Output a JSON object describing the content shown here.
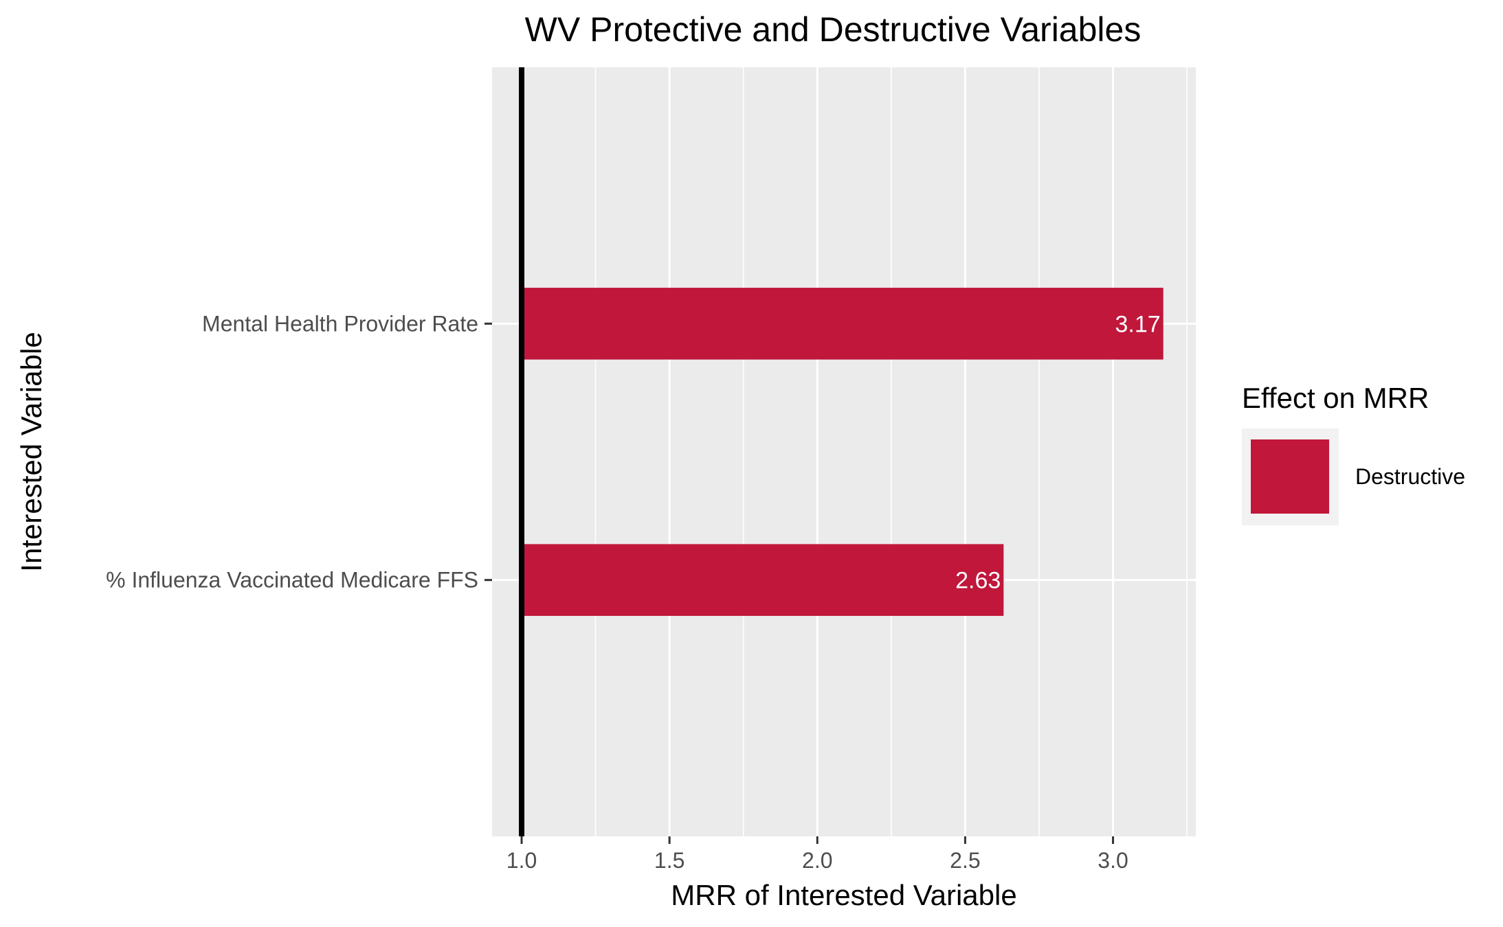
{
  "chart_data": {
    "type": "bar",
    "orientation": "horizontal",
    "title": "WV Protective and Destructive Variables",
    "xlabel": "MRR of Interested Variable",
    "ylabel": "Interested Variable",
    "categories": [
      "Mental Health Provider Rate",
      "% Influenza Vaccinated Medicare FFS"
    ],
    "series": [
      {
        "name": "Destructive",
        "values": [
          3.17,
          2.63
        ],
        "labels": [
          "3.17",
          "2.63"
        ],
        "color": "#c0173b"
      }
    ],
    "xlim": [
      0.9,
      3.28
    ],
    "xticks": [
      1.0,
      1.5,
      2.0,
      2.5,
      3.0
    ],
    "xtick_labels": [
      "1.0",
      "1.5",
      "2.0",
      "2.5",
      "3.0"
    ],
    "reference_line": 1.0,
    "grid": true,
    "legend": {
      "title": "Effect on MRR",
      "position": "right",
      "entries": [
        {
          "label": "Destructive",
          "color": "#c0173b"
        }
      ]
    }
  }
}
